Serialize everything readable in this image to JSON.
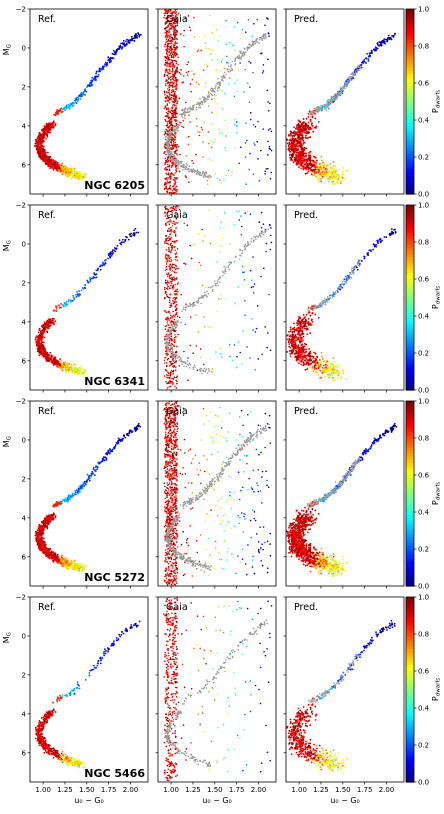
{
  "chart_data": {
    "type": "scatter",
    "description_axes": {
      "xlabel": "u₀ − G₀",
      "ylabel": "M_G",
      "xlim": [
        0.85,
        2.2
      ],
      "ylim": [
        7.5,
        -2
      ],
      "xticks": [
        1.0,
        1.25,
        1.5,
        1.75,
        2.0
      ],
      "xtick_labels": [
        "1.00",
        "1.25",
        "1.50",
        "1.75",
        "2.00"
      ],
      "yticks": [
        -2,
        0,
        2,
        4,
        6
      ],
      "ytick_labels": [
        "−2",
        "0",
        "2",
        "4",
        "6"
      ]
    },
    "column_titles": [
      "Ref.",
      "Gaia",
      "Pred."
    ],
    "colorbar": {
      "label": "P_dwarfs",
      "range": [
        0,
        1
      ],
      "ticks": [
        0.0,
        0.2,
        0.4,
        0.6,
        0.8,
        1.0
      ],
      "tick_labels": [
        "0.0",
        "0.2",
        "0.4",
        "0.6",
        "0.8",
        "1.0"
      ],
      "colormap": "jet"
    },
    "rows": [
      {
        "cluster": "NGC 6205"
      },
      {
        "cluster": "NGC 6341"
      },
      {
        "cluster": "NGC 5272"
      },
      {
        "cluster": "NGC 5466"
      }
    ],
    "components": {
      "red_giant_branch": [
        [
          1.12,
          3.4
        ],
        [
          1.2,
          3.2
        ],
        [
          1.3,
          3.0
        ],
        [
          1.4,
          2.6
        ],
        [
          1.5,
          2.1
        ],
        [
          1.6,
          1.5
        ],
        [
          1.7,
          0.9
        ],
        [
          1.8,
          0.4
        ],
        [
          1.9,
          -0.1
        ],
        [
          2.0,
          -0.4
        ],
        [
          2.1,
          -0.7
        ]
      ],
      "main_sequence": [
        [
          1.1,
          3.9
        ],
        [
          1.0,
          4.4
        ],
        [
          0.95,
          5.0
        ],
        [
          0.98,
          5.4
        ],
        [
          1.05,
          5.8
        ],
        [
          1.15,
          6.1
        ],
        [
          1.3,
          6.4
        ],
        [
          1.45,
          6.6
        ]
      ],
      "gaia_band_x": [
        0.95,
        1.05
      ]
    }
  }
}
